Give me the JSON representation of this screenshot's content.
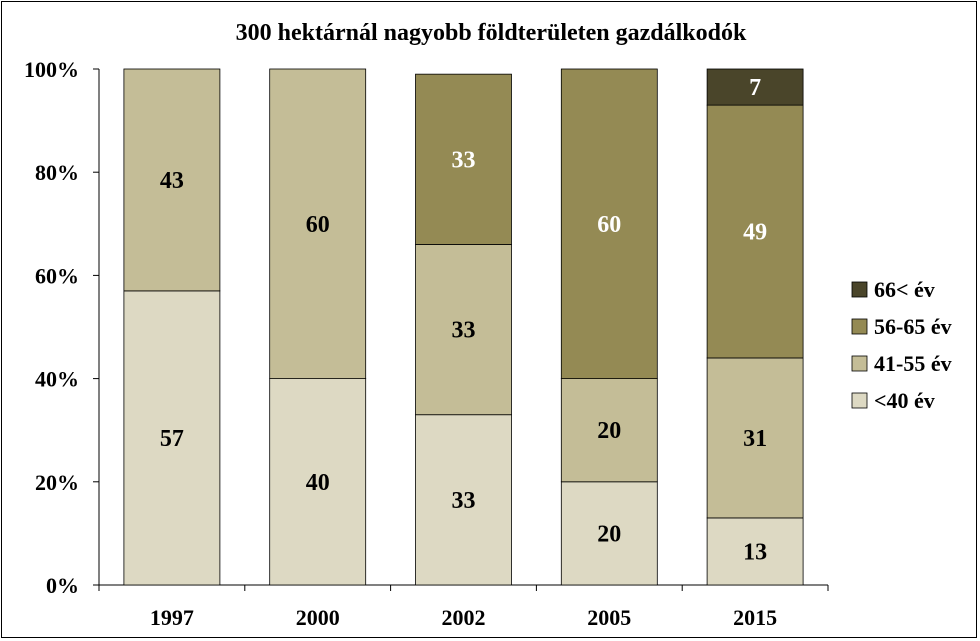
{
  "chart_data": {
    "type": "bar",
    "stacked": true,
    "percent": true,
    "title": "300 hektárnál nagyobb földterületen gazdálkodók",
    "xlabel": "",
    "ylabel": "",
    "ylim": [
      0,
      100
    ],
    "yticks": [
      "0%",
      "20%",
      "40%",
      "60%",
      "80%",
      "100%"
    ],
    "categories": [
      "1997",
      "2000",
      "2002",
      "2005",
      "2015"
    ],
    "series": [
      {
        "name": "<40 év",
        "color": "#ddd9c3",
        "label_color": "#000000",
        "values": [
          57,
          40,
          33,
          20,
          13
        ]
      },
      {
        "name": "41-55 év",
        "color": "#c4bd97",
        "label_color": "#000000",
        "values": [
          43,
          60,
          33,
          20,
          31
        ]
      },
      {
        "name": "56-65 év",
        "color": "#948a54",
        "label_color": "#ffffff",
        "values": [
          0,
          0,
          33,
          60,
          49
        ]
      },
      {
        "name": "66< év",
        "color": "#4a452a",
        "label_color": "#ffffff",
        "values": [
          0,
          0,
          0,
          0,
          7
        ]
      }
    ],
    "legend_position": "right"
  }
}
